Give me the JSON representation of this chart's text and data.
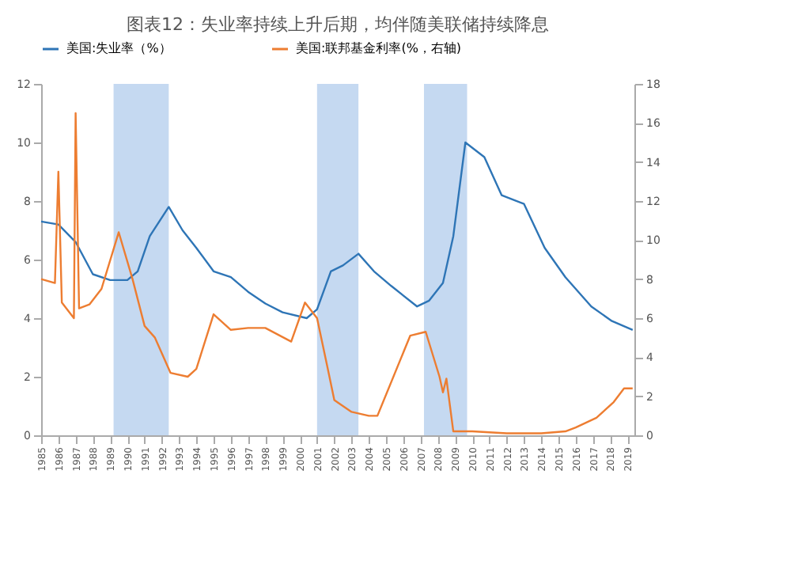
{
  "chart_data": {
    "type": "line",
    "title": "图表12：失业率持续上升后期，均伴随美联储持续降息",
    "series": [
      {
        "name": "美国:失业率（%）",
        "color": "#2e75b6",
        "x": [
          1985,
          1986,
          1987,
          1988,
          1989,
          1990,
          1990.6,
          1991.3,
          1992.4,
          1993.2,
          1994,
          1995,
          1996,
          1997,
          1998,
          1999,
          2000.4,
          2001,
          2001.8,
          2002.5,
          2003.4,
          2004.3,
          2005.3,
          2006.8,
          2007.5,
          2008.3,
          2008.9,
          2009.6,
          2010.7,
          2011.7,
          2013,
          2014.2,
          2015.4,
          2016.9,
          2018.1,
          2019.3
        ],
        "values": [
          7.3,
          7.2,
          6.6,
          5.5,
          5.3,
          5.3,
          5.6,
          6.8,
          7.8,
          7.0,
          6.4,
          5.6,
          5.4,
          4.9,
          4.5,
          4.2,
          4.0,
          4.3,
          5.6,
          5.8,
          6.2,
          5.6,
          5.1,
          4.4,
          4.6,
          5.2,
          6.8,
          10.0,
          9.5,
          8.2,
          7.9,
          6.4,
          5.4,
          4.4,
          3.9,
          3.6
        ]
      },
      {
        "name": "美国:联邦基金利率(%，右轴)",
        "color": "#ed7d31",
        "axis": "y2",
        "x": [
          1985,
          1985.8,
          1986,
          1986.2,
          1986.9,
          1987,
          1987.2,
          1987.8,
          1988.5,
          1989.5,
          1990.3,
          1991,
          1991.6,
          1992.5,
          1993.5,
          1994,
          1995,
          1996,
          1997,
          1998,
          1999.5,
          2000.3,
          2001,
          2001.6,
          2002,
          2003,
          2004,
          2004.5,
          2006.4,
          2007.3,
          2008.1,
          2008.3,
          2008.5,
          2008.9,
          2010,
          2012,
          2014,
          2015.4,
          2016,
          2017.2,
          2018.2,
          2018.8,
          2019.3
        ],
        "values": [
          8.0,
          7.8,
          13.5,
          6.8,
          6.0,
          16.5,
          6.5,
          6.7,
          7.5,
          10.4,
          8.0,
          5.6,
          5.0,
          3.2,
          3.0,
          3.4,
          6.2,
          5.4,
          5.5,
          5.5,
          4.8,
          6.8,
          6.0,
          3.5,
          1.8,
          1.2,
          1.0,
          1.0,
          5.1,
          5.3,
          3.0,
          2.2,
          2.9,
          0.2,
          0.2,
          0.1,
          0.1,
          0.2,
          0.4,
          0.9,
          1.7,
          2.4,
          2.4
        ]
      }
    ],
    "xlim": [
      1985,
      2019.4
    ],
    "xticks": [
      1985,
      1986,
      1987,
      1988,
      1989,
      1990,
      1991,
      1992,
      1993,
      1994,
      1995,
      1996,
      1997,
      1998,
      1999,
      2000,
      2001,
      2002,
      2003,
      2004,
      2005,
      2006,
      2007,
      2008,
      2009,
      2010,
      2011,
      2012,
      2013,
      2014,
      2015,
      2016,
      2017,
      2018,
      2019
    ],
    "ylim": [
      0,
      12
    ],
    "yticks": [
      0,
      2,
      4,
      6,
      8,
      10,
      12
    ],
    "y2lim": [
      0,
      18
    ],
    "y2ticks": [
      0,
      2,
      4,
      6,
      8,
      10,
      12,
      14,
      16,
      18
    ],
    "bands": [
      {
        "axis": "x",
        "from": 1989.2,
        "to": 1992.4,
        "color": "#c5d9f1"
      },
      {
        "axis": "x",
        "from": 2001.0,
        "to": 2003.4,
        "color": "#c5d9f1"
      },
      {
        "axis": "x",
        "from": 2007.2,
        "to": 2009.7,
        "color": "#c5d9f1"
      }
    ],
    "legend": "top"
  }
}
